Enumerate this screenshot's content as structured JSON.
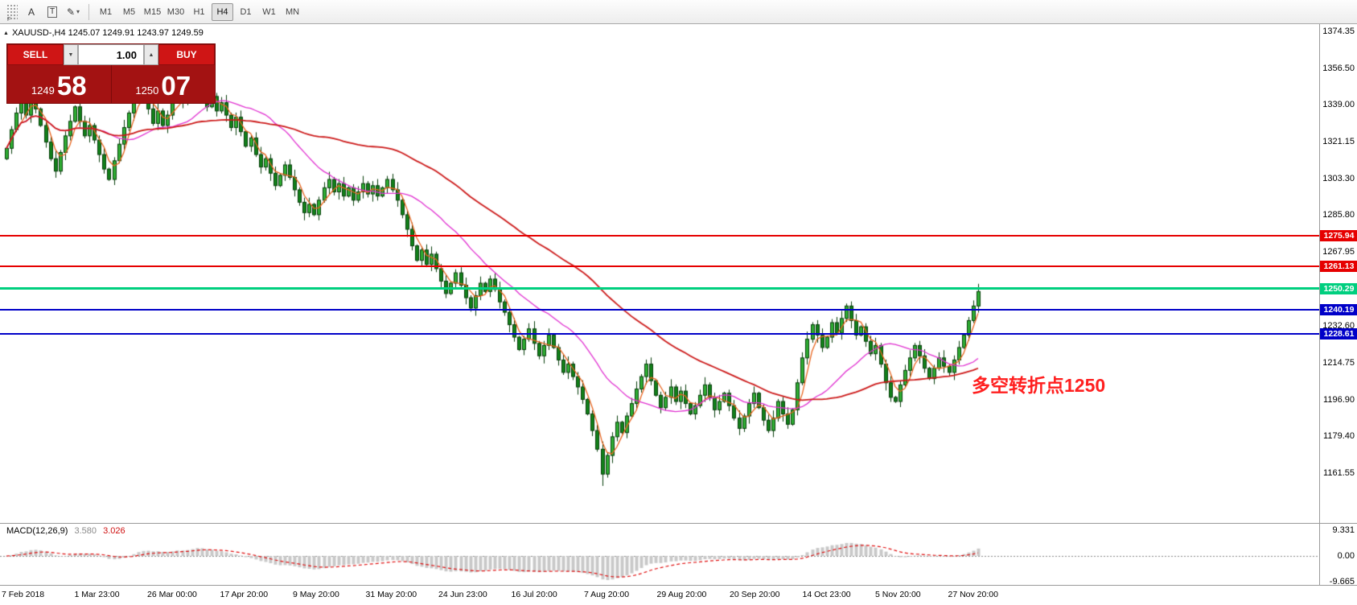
{
  "toolbar": {
    "grip_badge": "F",
    "text_tool_label": "A",
    "textbox_tool_label": "T",
    "pencil_glyph": "✎",
    "dropdown_glyph": "▾",
    "timeframes": [
      "M1",
      "M5",
      "M15",
      "M30",
      "H1",
      "H4",
      "D1",
      "W1",
      "MN"
    ],
    "active_timeframe": "H4"
  },
  "symbol_line": {
    "collapse_glyph": "▲",
    "text": "XAUUSD-,H4  1245.07 1249.91 1243.97 1249.59"
  },
  "trade_panel": {
    "sell_label": "SELL",
    "buy_label": "BUY",
    "volume": "1.00",
    "volume_down_glyph": "▼",
    "volume_up_glyph": "▲",
    "bid_major": "1249",
    "bid_minor": "58",
    "ask_major": "1250",
    "ask_minor": "07"
  },
  "annotation": {
    "text": "多空转折点1250",
    "color": "#ff1f1f"
  },
  "macd_panel": {
    "title": "MACD(12,26,9)",
    "main_value": "3.580",
    "signal_value": "3.026",
    "axis_labels": [
      "9.331",
      "0.00",
      "-9.665"
    ]
  },
  "price_axis_labels": [
    "1374.35",
    "1356.50",
    "1339.00",
    "1321.15",
    "1303.30",
    "1285.80",
    "1267.95",
    "1232.60",
    "1214.75",
    "1196.90",
    "1179.40",
    "1161.55"
  ],
  "hlines": [
    {
      "label": "1275.94",
      "value": 1275.94,
      "color": "#e60000",
      "thickness": 2
    },
    {
      "label": "1261.13",
      "value": 1261.13,
      "color": "#e60000",
      "thickness": 2
    },
    {
      "label": "1250.29",
      "value": 1250.29,
      "color": "#00cf7f",
      "thickness": 3
    },
    {
      "label": "1240.19",
      "value": 1240.19,
      "color": "#0000c8",
      "thickness": 2
    },
    {
      "label": "1228.61",
      "value": 1228.61,
      "color": "#0000c8",
      "thickness": 2
    }
  ],
  "date_axis_labels": [
    "7 Feb 2018",
    "1 Mar 23:00",
    "26 Mar 00:00",
    "17 Apr 20:00",
    "9 May 20:00",
    "31 May 20:00",
    "24 Jun 23:00",
    "16 Jul 20:00",
    "7 Aug 20:00",
    "29 Aug 20:00",
    "20 Sep 20:00",
    "14 Oct 23:00",
    "5 Nov 20:00",
    "27 Nov 20:00"
  ],
  "chart_data": {
    "type": "candlestick",
    "symbol": "XAUUSD-",
    "timeframe": "H4",
    "title": "XAUUSD-,H4",
    "last_quote": {
      "open": "1245.07",
      "high": "1249.91",
      "low": "1243.97",
      "close": "1249.59"
    },
    "ylim": [
      1150.0,
      1378.0
    ],
    "price_axis_ticks": [
      1374.35,
      1356.5,
      1339.0,
      1321.15,
      1303.3,
      1285.8,
      1267.95,
      1232.6,
      1214.75,
      1196.9,
      1179.4,
      1161.55
    ],
    "hline_values": [
      1275.94,
      1261.13,
      1250.29,
      1240.19,
      1228.61
    ],
    "closes": [
      1318,
      1327,
      1335,
      1341,
      1334,
      1343,
      1337,
      1329,
      1321,
      1313,
      1307,
      1316,
      1324,
      1331,
      1338,
      1331,
      1324,
      1329,
      1322,
      1315,
      1308,
      1303,
      1312,
      1320,
      1328,
      1335,
      1342,
      1348,
      1344,
      1337,
      1330,
      1336,
      1329,
      1334,
      1341,
      1347,
      1340,
      1345,
      1351,
      1357,
      1346,
      1338,
      1343,
      1336,
      1340,
      1334,
      1328,
      1333,
      1326,
      1319,
      1323,
      1315,
      1309,
      1313,
      1306,
      1300,
      1305,
      1310,
      1304,
      1298,
      1292,
      1287,
      1291,
      1286,
      1293,
      1299,
      1303,
      1297,
      1301,
      1295,
      1299,
      1293,
      1297,
      1301,
      1296,
      1300,
      1295,
      1299,
      1303,
      1298,
      1293,
      1286,
      1279,
      1271,
      1264,
      1269,
      1262,
      1267,
      1260,
      1254,
      1248,
      1253,
      1258,
      1252,
      1246,
      1241,
      1247,
      1253,
      1249,
      1255,
      1250,
      1244,
      1239,
      1233,
      1227,
      1221,
      1226,
      1231,
      1224,
      1218,
      1223,
      1228,
      1222,
      1216,
      1210,
      1214,
      1208,
      1203,
      1197,
      1190,
      1182,
      1173,
      1161,
      1170,
      1179,
      1186,
      1181,
      1189,
      1195,
      1202,
      1208,
      1214,
      1206,
      1199,
      1193,
      1198,
      1203,
      1196,
      1201,
      1195,
      1190,
      1194,
      1199,
      1204,
      1198,
      1192,
      1196,
      1200,
      1194,
      1188,
      1183,
      1189,
      1195,
      1200,
      1193,
      1187,
      1182,
      1188,
      1196,
      1190,
      1185,
      1192,
      1205,
      1217,
      1226,
      1233,
      1228,
      1222,
      1227,
      1234,
      1229,
      1236,
      1242,
      1235,
      1228,
      1232,
      1225,
      1219,
      1223,
      1214,
      1205,
      1198,
      1196,
      1204,
      1211,
      1217,
      1223,
      1218,
      1212,
      1207,
      1212,
      1217,
      1213,
      1210,
      1216,
      1222,
      1228,
      1235,
      1242,
      1249
    ],
    "moving_averages": [
      {
        "name": "fast",
        "period": 4,
        "color": "#e8641e"
      },
      {
        "name": "medium",
        "period": 20,
        "color": "#e030d0"
      },
      {
        "name": "slow",
        "period": 55,
        "color": "#cc1a1a"
      }
    ],
    "macd": {
      "fast": 12,
      "slow": 26,
      "signal": 9
    }
  },
  "colors": {
    "bull_candle": "#2fae33",
    "bear_candle": "#12821a",
    "candle_outline": "#063d0a",
    "hist_fill": "#c8c8c8",
    "hist_stroke": "#909090",
    "signal_line": "#e01010",
    "zero_line": "#888888"
  }
}
